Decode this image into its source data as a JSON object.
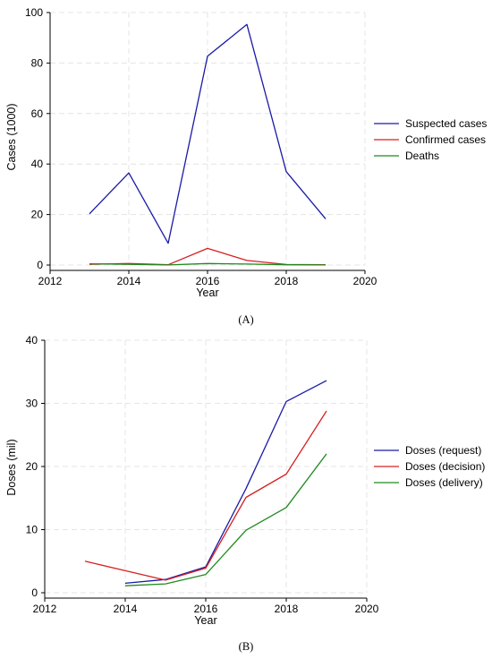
{
  "chart_data": [
    {
      "type": "line",
      "panel_label": "(A)",
      "xlabel": "Year",
      "ylabel": "Cases (1000)",
      "xlim": [
        2012,
        2020
      ],
      "ylim": [
        0,
        100
      ],
      "xticks": [
        2012,
        2014,
        2016,
        2018,
        2020
      ],
      "yticks": [
        0,
        20,
        40,
        60,
        80,
        100
      ],
      "grid": true,
      "legend_position": "right",
      "series": [
        {
          "name": "Suspected cases",
          "color": "#1a1aa6",
          "x": [
            2013,
            2014,
            2015,
            2016,
            2017,
            2018,
            2019
          ],
          "y": [
            20.3,
            36.5,
            8.6,
            82.7,
            95.3,
            37.0,
            18.3
          ]
        },
        {
          "name": "Confirmed cases",
          "color": "#d62020",
          "x": [
            2013,
            2014,
            2015,
            2016,
            2017,
            2018,
            2019
          ],
          "y": [
            0.3,
            0.6,
            0.1,
            6.6,
            1.8,
            0.2,
            0.1
          ]
        },
        {
          "name": "Deaths",
          "color": "#1f8a1f",
          "x": [
            2013,
            2014,
            2015,
            2016,
            2017,
            2018,
            2019
          ],
          "y": [
            0.5,
            0.3,
            0.05,
            0.6,
            0.4,
            0.1,
            0.05
          ]
        }
      ]
    },
    {
      "type": "line",
      "panel_label": "(B)",
      "xlabel": "Year",
      "ylabel": "Doses (mil)",
      "xlim": [
        2012,
        2020
      ],
      "ylim": [
        0,
        40
      ],
      "xticks": [
        2012,
        2014,
        2016,
        2018,
        2020
      ],
      "yticks": [
        0,
        10,
        20,
        30,
        40
      ],
      "grid": true,
      "legend_position": "right",
      "series": [
        {
          "name": "Doses (request)",
          "color": "#1a1aa6",
          "x": [
            2014,
            2015,
            2016,
            2017,
            2018,
            2019
          ],
          "y": [
            1.5,
            2.1,
            4.1,
            16.5,
            30.3,
            33.6
          ]
        },
        {
          "name": "Doses (decision)",
          "color": "#d62020",
          "x": [
            2013,
            2015,
            2016,
            2017,
            2018,
            2019
          ],
          "y": [
            5.0,
            2.0,
            3.9,
            15.1,
            18.8,
            28.8
          ]
        },
        {
          "name": "Doses (delivery)",
          "color": "#1f8a1f",
          "x": [
            2014,
            2015,
            2016,
            2017,
            2018,
            2019
          ],
          "y": [
            1.1,
            1.4,
            2.9,
            9.9,
            13.5,
            22.0
          ]
        }
      ]
    }
  ]
}
